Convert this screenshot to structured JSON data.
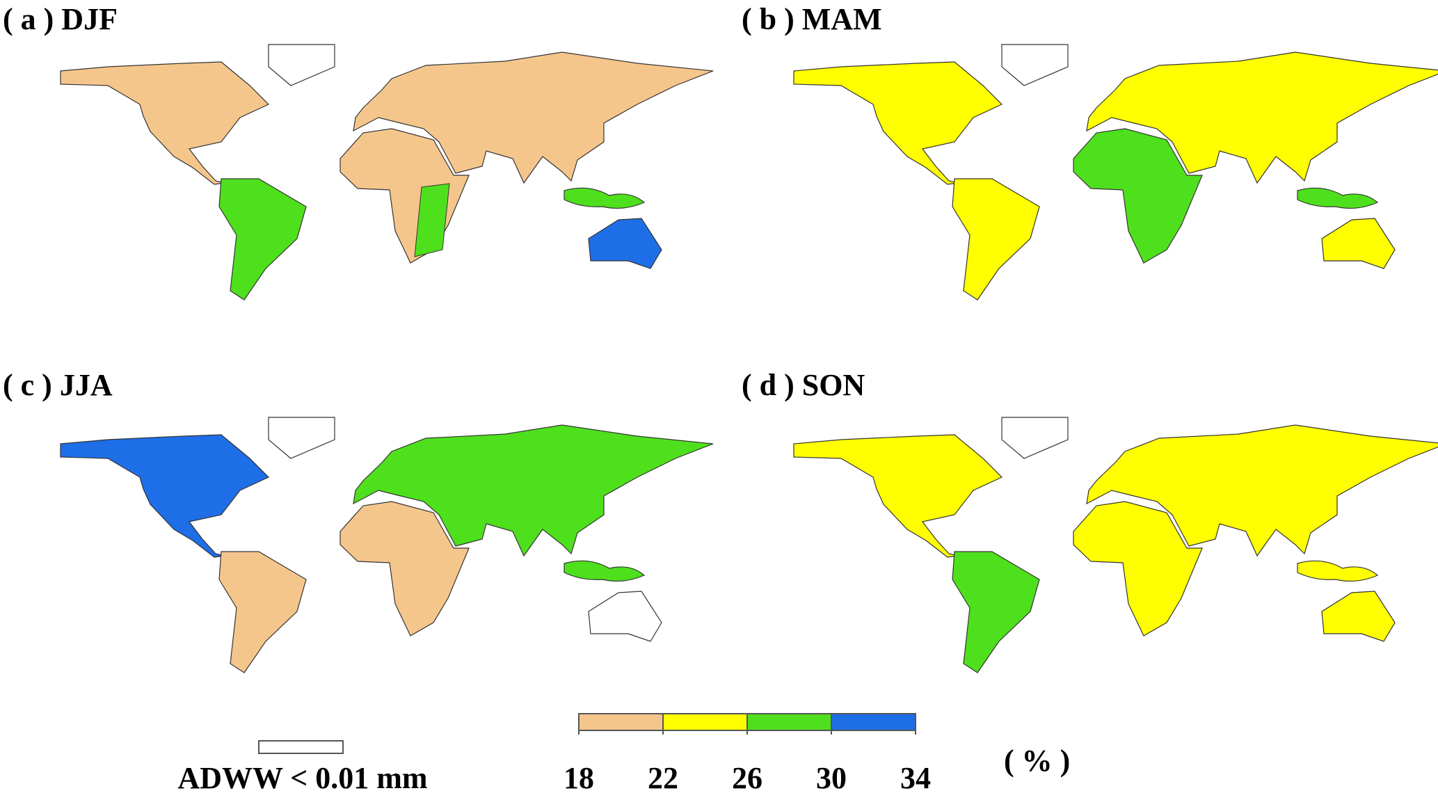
{
  "panels": [
    {
      "label": "( a ) DJF"
    },
    {
      "label": "( b ) MAM"
    },
    {
      "label": "( c ) JJA"
    },
    {
      "label": "( d ) SON"
    }
  ],
  "legend": {
    "no_data_label": "ADWW < 0.01 mm",
    "colorbar": {
      "ticks": [
        18,
        22,
        26,
        30,
        34
      ],
      "colors": [
        "#f5c68c",
        "#ffff00",
        "#4ee01c",
        "#1e6ee8"
      ],
      "unit": "( % )"
    }
  }
}
